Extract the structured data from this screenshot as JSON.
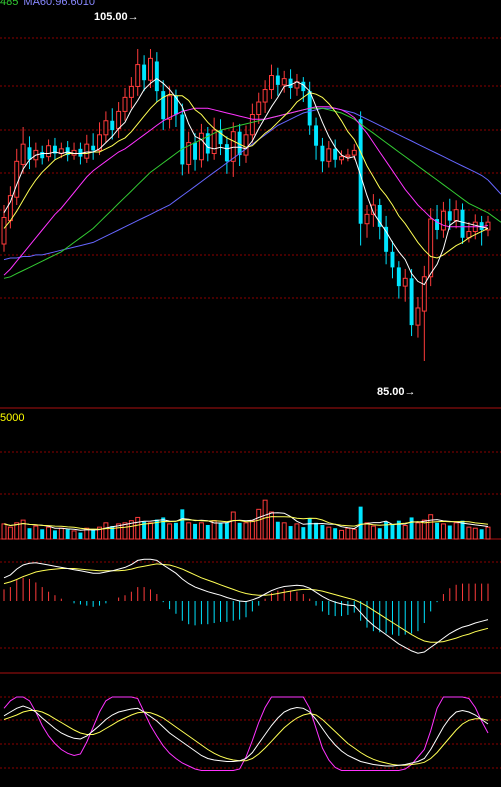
{
  "header": {
    "ma_partial": "485",
    "ma60_label": "MA60:96.6010",
    "volume_partial": "5000"
  },
  "annotations": {
    "high_label": "105.00",
    "low_label": "85.00"
  },
  "colors": {
    "background": "#000000",
    "grid": "#8b0000",
    "up_candle": "#ff3b3b",
    "down_candle": "#00e5ff",
    "ma5": "#ffffff",
    "ma10": "#ffff55",
    "ma20": "#ff33ff",
    "ma30": "#33cc33",
    "ma60": "#6666ff",
    "text_green": "#33cc33",
    "text_blue": "#8888ff",
    "text_yellow": "#ffff00",
    "text_white": "#ffffff"
  },
  "chart_data": [
    {
      "type": "candlestick",
      "title": "",
      "ylim": [
        82.5,
        107.5
      ],
      "candles": [
        [
          92.5,
          94.2,
          92.0,
          95.0
        ],
        [
          94.0,
          95.6,
          93.5,
          96.2
        ],
        [
          95.5,
          97.8,
          95.0,
          98.6
        ],
        [
          97.6,
          98.9,
          97.0,
          100.0
        ],
        [
          98.7,
          97.9,
          97.3,
          99.4
        ],
        [
          97.9,
          98.5,
          97.4,
          99.0
        ],
        [
          98.4,
          98.0,
          97.6,
          98.8
        ],
        [
          98.1,
          98.8,
          97.8,
          99.2
        ],
        [
          98.8,
          98.3,
          97.9,
          99.3
        ],
        [
          98.3,
          98.6,
          98.0,
          99.0
        ],
        [
          98.7,
          98.2,
          97.8,
          99.1
        ],
        [
          98.2,
          98.5,
          97.9,
          99.0
        ],
        [
          98.6,
          98.1,
          97.6,
          99.0
        ],
        [
          98.0,
          98.9,
          97.7,
          99.5
        ],
        [
          98.8,
          98.5,
          97.9,
          99.6
        ],
        [
          98.5,
          99.5,
          98.2,
          100.3
        ],
        [
          99.5,
          100.4,
          99.0,
          101.0
        ],
        [
          100.4,
          99.8,
          99.2,
          101.2
        ],
        [
          99.9,
          101.0,
          99.3,
          101.6
        ],
        [
          101.0,
          101.9,
          100.4,
          102.5
        ],
        [
          101.9,
          102.6,
          101.2,
          103.2
        ],
        [
          102.6,
          104.0,
          102.0,
          105.0
        ],
        [
          104.0,
          103.0,
          102.3,
          104.6
        ],
        [
          103.0,
          104.4,
          102.5,
          105.0
        ],
        [
          104.2,
          102.3,
          101.6,
          104.8
        ],
        [
          102.3,
          100.5,
          99.8,
          103.0
        ],
        [
          100.5,
          102.0,
          99.9,
          102.6
        ],
        [
          102.0,
          100.8,
          100.0,
          102.4
        ],
        [
          100.8,
          97.6,
          96.9,
          101.5
        ],
        [
          97.6,
          99.0,
          97.0,
          99.7
        ],
        [
          99.0,
          97.9,
          97.2,
          99.6
        ],
        [
          97.9,
          99.6,
          97.4,
          100.2
        ],
        [
          99.6,
          98.3,
          97.8,
          100.0
        ],
        [
          98.3,
          99.8,
          97.9,
          100.6
        ],
        [
          99.8,
          98.9,
          98.2,
          100.5
        ],
        [
          98.9,
          97.8,
          97.0,
          99.4
        ],
        [
          97.8,
          99.7,
          96.8,
          100.3
        ],
        [
          99.7,
          98.2,
          97.5,
          100.2
        ],
        [
          98.2,
          99.5,
          97.7,
          100.1
        ],
        [
          99.5,
          100.8,
          99.0,
          101.5
        ],
        [
          100.8,
          101.6,
          100.2,
          102.2
        ],
        [
          101.6,
          102.4,
          100.9,
          103.0
        ],
        [
          102.4,
          103.3,
          101.8,
          104.0
        ],
        [
          103.3,
          102.7,
          102.0,
          103.8
        ],
        [
          102.7,
          103.1,
          102.2,
          103.6
        ],
        [
          103.1,
          102.5,
          101.8,
          103.7
        ],
        [
          102.5,
          102.9,
          102.0,
          103.4
        ],
        [
          102.9,
          102.3,
          101.6,
          103.2
        ],
        [
          102.3,
          100.1,
          99.5,
          102.9
        ],
        [
          100.1,
          98.8,
          97.9,
          100.6
        ],
        [
          98.8,
          97.8,
          97.1,
          99.3
        ],
        [
          97.8,
          98.6,
          97.4,
          99.1
        ],
        [
          98.6,
          97.9,
          97.4,
          99.2
        ],
        [
          97.9,
          98.1,
          97.6,
          98.5
        ],
        [
          98.1,
          98.2,
          97.8,
          98.6
        ],
        [
          98.2,
          98.5,
          97.9,
          98.9
        ],
        [
          100.5,
          93.8,
          92.4,
          101.0
        ],
        [
          93.8,
          94.4,
          92.9,
          95.0
        ],
        [
          94.4,
          95.0,
          93.6,
          95.7
        ],
        [
          95.0,
          93.6,
          92.8,
          95.4
        ],
        [
          93.6,
          92.0,
          91.2,
          94.3
        ],
        [
          92.0,
          91.0,
          90.3,
          92.7
        ],
        [
          91.0,
          89.8,
          89.0,
          91.4
        ],
        [
          89.8,
          90.3,
          88.8,
          90.9
        ],
        [
          90.3,
          87.3,
          86.6,
          90.9
        ],
        [
          87.3,
          88.4,
          86.5,
          89.1
        ],
        [
          88.2,
          90.4,
          85.0,
          91.1
        ],
        [
          90.4,
          94.1,
          89.8,
          94.8
        ],
        [
          94.1,
          93.4,
          92.8,
          95.0
        ],
        [
          93.4,
          94.6,
          92.9,
          95.2
        ],
        [
          94.6,
          94.0,
          93.4,
          95.4
        ],
        [
          94.0,
          94.7,
          93.5,
          95.3
        ],
        [
          94.7,
          92.9,
          92.5,
          95.1
        ],
        [
          92.9,
          93.3,
          92.6,
          93.9
        ],
        [
          93.3,
          93.9,
          92.8,
          94.4
        ],
        [
          93.9,
          93.4,
          92.4,
          94.3
        ],
        [
          93.4,
          93.9,
          93.0,
          94.3
        ]
      ],
      "ma5": [
        94.5,
        95.2,
        96.3,
        97.3,
        97.9,
        98.2,
        98.3,
        98.3,
        98.4,
        98.3,
        98.4,
        98.3,
        98.3,
        98.4,
        98.4,
        98.6,
        99.0,
        99.4,
        99.9,
        100.3,
        101.1,
        101.7,
        102.4,
        102.8,
        103.1,
        102.8,
        102.4,
        101.9,
        101.3,
        100.2,
        99.4,
        99.2,
        98.7,
        98.6,
        98.7,
        98.6,
        98.7,
        98.7,
        98.6,
        99.1,
        99.9,
        100.6,
        101.3,
        101.9,
        102.6,
        102.7,
        102.9,
        102.7,
        102.3,
        101.3,
        100.3,
        99.4,
        98.7,
        98.2,
        98.0,
        98.1,
        96.9,
        95.6,
        94.5,
        93.9,
        93.3,
        92.6,
        92.0,
        91.5,
        90.6,
        90.1,
        89.9,
        90.6,
        91.2,
        92.2,
        93.7,
        94.0,
        93.9,
        93.8,
        93.7,
        93.6,
        93.5
      ],
      "ma10": [
        93.5,
        94.0,
        94.6,
        95.3,
        96.0,
        96.6,
        97.1,
        97.5,
        97.9,
        98.1,
        98.3,
        98.3,
        98.3,
        98.3,
        98.4,
        98.4,
        98.6,
        98.8,
        99.1,
        99.3,
        99.7,
        100.2,
        100.7,
        101.2,
        101.6,
        101.9,
        102.1,
        102.0,
        102.0,
        101.7,
        101.1,
        100.8,
        100.3,
        99.9,
        99.6,
        99.3,
        99.1,
        98.9,
        98.7,
        98.8,
        99.2,
        99.6,
        99.9,
        100.3,
        100.7,
        101.1,
        101.6,
        101.9,
        102.2,
        102.1,
        101.9,
        101.5,
        101.0,
        100.4,
        99.7,
        99.2,
        98.4,
        97.5,
        96.8,
        96.1,
        95.6,
        95.0,
        94.3,
        93.8,
        93.2,
        92.6,
        92.1,
        91.7,
        91.6,
        91.8,
        92.1,
        92.4,
        92.6,
        92.9,
        93.1,
        93.3,
        93.5
      ],
      "ma20": [
        90.5,
        90.9,
        91.4,
        91.9,
        92.4,
        92.9,
        93.4,
        93.9,
        94.4,
        94.8,
        95.3,
        95.8,
        96.3,
        96.8,
        97.2,
        97.5,
        97.8,
        98.1,
        98.4,
        98.6,
        98.9,
        99.2,
        99.5,
        99.8,
        100.1,
        100.4,
        100.6,
        100.8,
        101.0,
        101.1,
        101.2,
        101.2,
        101.2,
        101.1,
        101.0,
        100.9,
        100.8,
        100.7,
        100.6,
        100.5,
        100.5,
        100.5,
        100.6,
        100.7,
        100.8,
        100.9,
        101.0,
        101.1,
        101.2,
        101.3,
        101.3,
        101.3,
        101.2,
        101.1,
        100.9,
        100.6,
        100.1,
        99.6,
        99.0,
        98.4,
        97.8,
        97.2,
        96.6,
        96.0,
        95.5,
        95.0,
        94.6,
        94.2,
        93.9,
        93.7,
        93.6,
        93.6,
        93.6,
        93.6,
        93.6,
        93.6,
        93.7
      ],
      "ma30": [
        90.3,
        90.4,
        90.6,
        90.8,
        91.0,
        91.2,
        91.4,
        91.6,
        91.8,
        92.0,
        92.3,
        92.6,
        92.9,
        93.2,
        93.5,
        93.9,
        94.3,
        94.7,
        95.1,
        95.5,
        95.9,
        96.3,
        96.7,
        97.1,
        97.4,
        97.7,
        98.0,
        98.3,
        98.6,
        98.8,
        99.0,
        99.2,
        99.4,
        99.6,
        99.8,
        99.9,
        100.0,
        100.1,
        100.2,
        100.3,
        100.4,
        100.5,
        100.6,
        100.7,
        100.8,
        100.9,
        101.0,
        101.1,
        101.2,
        101.2,
        101.2,
        101.1,
        101.0,
        100.9,
        100.7,
        100.5,
        100.2,
        99.9,
        99.6,
        99.3,
        99.0,
        98.7,
        98.4,
        98.1,
        97.8,
        97.5,
        97.2,
        96.9,
        96.6,
        96.3,
        96.0,
        95.7,
        95.4,
        95.1,
        94.9,
        94.7,
        94.5
      ],
      "ma60": [
        91.5,
        91.6,
        91.6,
        91.7,
        91.7,
        91.8,
        91.8,
        91.9,
        92.0,
        92.1,
        92.2,
        92.3,
        92.4,
        92.5,
        92.6,
        92.8,
        93.0,
        93.2,
        93.4,
        93.6,
        93.8,
        94.0,
        94.2,
        94.4,
        94.6,
        94.8,
        95.0,
        95.3,
        95.6,
        95.9,
        96.2,
        96.5,
        96.8,
        97.1,
        97.4,
        97.7,
        98.0,
        98.3,
        98.6,
        98.9,
        99.2,
        99.5,
        99.8,
        100.1,
        100.3,
        100.5,
        100.7,
        100.9,
        101.0,
        101.1,
        101.2,
        101.2,
        101.2,
        101.1,
        101.0,
        100.9,
        100.7,
        100.5,
        100.3,
        100.1,
        99.9,
        99.7,
        99.5,
        99.3,
        99.1,
        98.9,
        98.7,
        98.5,
        98.3,
        98.1,
        97.9,
        97.7,
        97.5,
        97.3,
        97.1,
        96.9,
        96.6
      ]
    },
    {
      "type": "volume",
      "ylim": [
        0,
        1
      ],
      "values": [
        0.28,
        0.22,
        0.3,
        0.35,
        0.2,
        0.24,
        0.18,
        0.22,
        0.16,
        0.2,
        0.18,
        0.15,
        0.12,
        0.2,
        0.18,
        0.22,
        0.3,
        0.24,
        0.28,
        0.3,
        0.34,
        0.4,
        0.32,
        0.3,
        0.36,
        0.4,
        0.28,
        0.3,
        0.55,
        0.3,
        0.28,
        0.3,
        0.26,
        0.34,
        0.3,
        0.3,
        0.5,
        0.3,
        0.3,
        0.34,
        0.55,
        0.72,
        0.5,
        0.32,
        0.3,
        0.24,
        0.28,
        0.22,
        0.38,
        0.3,
        0.26,
        0.22,
        0.2,
        0.16,
        0.2,
        0.18,
        0.6,
        0.3,
        0.24,
        0.2,
        0.32,
        0.28,
        0.34,
        0.25,
        0.4,
        0.3,
        0.35,
        0.45,
        0.3,
        0.28,
        0.25,
        0.3,
        0.34,
        0.22,
        0.2,
        0.18,
        0.22
      ]
    },
    {
      "type": "macd",
      "ylim": [
        -1,
        1
      ],
      "dif": [
        0.4,
        0.45,
        0.55,
        0.62,
        0.65,
        0.66,
        0.64,
        0.62,
        0.6,
        0.58,
        0.56,
        0.54,
        0.52,
        0.5,
        0.48,
        0.48,
        0.5,
        0.52,
        0.55,
        0.58,
        0.63,
        0.7,
        0.72,
        0.72,
        0.7,
        0.62,
        0.55,
        0.48,
        0.38,
        0.3,
        0.24,
        0.2,
        0.16,
        0.13,
        0.1,
        0.06,
        0.03,
        0.0,
        -0.01,
        0.02,
        0.06,
        0.12,
        0.18,
        0.22,
        0.25,
        0.26,
        0.27,
        0.26,
        0.22,
        0.15,
        0.08,
        0.02,
        -0.02,
        -0.05,
        -0.07,
        -0.08,
        -0.2,
        -0.32,
        -0.42,
        -0.5,
        -0.58,
        -0.66,
        -0.74,
        -0.8,
        -0.86,
        -0.9,
        -0.88,
        -0.8,
        -0.72,
        -0.64,
        -0.56,
        -0.5,
        -0.45,
        -0.42,
        -0.38,
        -0.35,
        -0.32
      ],
      "dea": [
        0.3,
        0.33,
        0.37,
        0.42,
        0.46,
        0.5,
        0.52,
        0.54,
        0.55,
        0.56,
        0.56,
        0.56,
        0.55,
        0.54,
        0.53,
        0.52,
        0.52,
        0.52,
        0.52,
        0.53,
        0.55,
        0.58,
        0.6,
        0.62,
        0.64,
        0.63,
        0.62,
        0.59,
        0.55,
        0.5,
        0.45,
        0.4,
        0.36,
        0.32,
        0.28,
        0.24,
        0.2,
        0.16,
        0.13,
        0.11,
        0.1,
        0.1,
        0.11,
        0.13,
        0.15,
        0.17,
        0.19,
        0.2,
        0.2,
        0.19,
        0.17,
        0.14,
        0.11,
        0.08,
        0.05,
        0.02,
        -0.03,
        -0.09,
        -0.16,
        -0.23,
        -0.3,
        -0.37,
        -0.44,
        -0.51,
        -0.58,
        -0.64,
        -0.69,
        -0.71,
        -0.71,
        -0.7,
        -0.67,
        -0.64,
        -0.6,
        -0.57,
        -0.53,
        -0.5,
        -0.47
      ]
    },
    {
      "type": "kdj",
      "ylim": [
        0,
        100
      ],
      "k": [
        75,
        80,
        85,
        88,
        85,
        80,
        72,
        65,
        58,
        52,
        48,
        45,
        44,
        48,
        55,
        62,
        70,
        76,
        80,
        82,
        84,
        85,
        80,
        74,
        68,
        60,
        52,
        46,
        40,
        34,
        28,
        22,
        18,
        16,
        15,
        14,
        14,
        15,
        18,
        26,
        38,
        50,
        62,
        72,
        80,
        84,
        86,
        85,
        80,
        70,
        58,
        46,
        36,
        28,
        22,
        18,
        14,
        12,
        10,
        9,
        8,
        8,
        9,
        10,
        12,
        14,
        18,
        30,
        45,
        60,
        72,
        80,
        82,
        80,
        76,
        70,
        64
      ],
      "d": [
        70,
        73,
        76,
        80,
        82,
        82,
        80,
        76,
        71,
        66,
        61,
        56,
        52,
        50,
        50,
        53,
        58,
        63,
        68,
        72,
        76,
        79,
        80,
        79,
        76,
        72,
        66,
        60,
        54,
        48,
        42,
        36,
        30,
        25,
        21,
        18,
        16,
        15,
        15,
        18,
        24,
        32,
        41,
        50,
        59,
        66,
        72,
        76,
        78,
        76,
        70,
        62,
        54,
        46,
        38,
        32,
        26,
        21,
        17,
        14,
        12,
        10,
        9,
        9,
        10,
        11,
        13,
        18,
        26,
        36,
        46,
        56,
        64,
        69,
        71,
        71,
        69
      ],
      "j": [
        85,
        95,
        100,
        100,
        95,
        80,
        62,
        48,
        38,
        30,
        25,
        22,
        24,
        40,
        60,
        80,
        95,
        100,
        100,
        100,
        100,
        98,
        80,
        62,
        48,
        35,
        25,
        18,
        12,
        8,
        4,
        2,
        2,
        2,
        2,
        2,
        2,
        4,
        20,
        42,
        66,
        86,
        100,
        100,
        100,
        100,
        100,
        100,
        85,
        58,
        32,
        16,
        6,
        2,
        2,
        2,
        2,
        2,
        2,
        2,
        2,
        2,
        2,
        4,
        10,
        20,
        30,
        55,
        85,
        100,
        100,
        100,
        100,
        98,
        86,
        68,
        52
      ]
    }
  ]
}
